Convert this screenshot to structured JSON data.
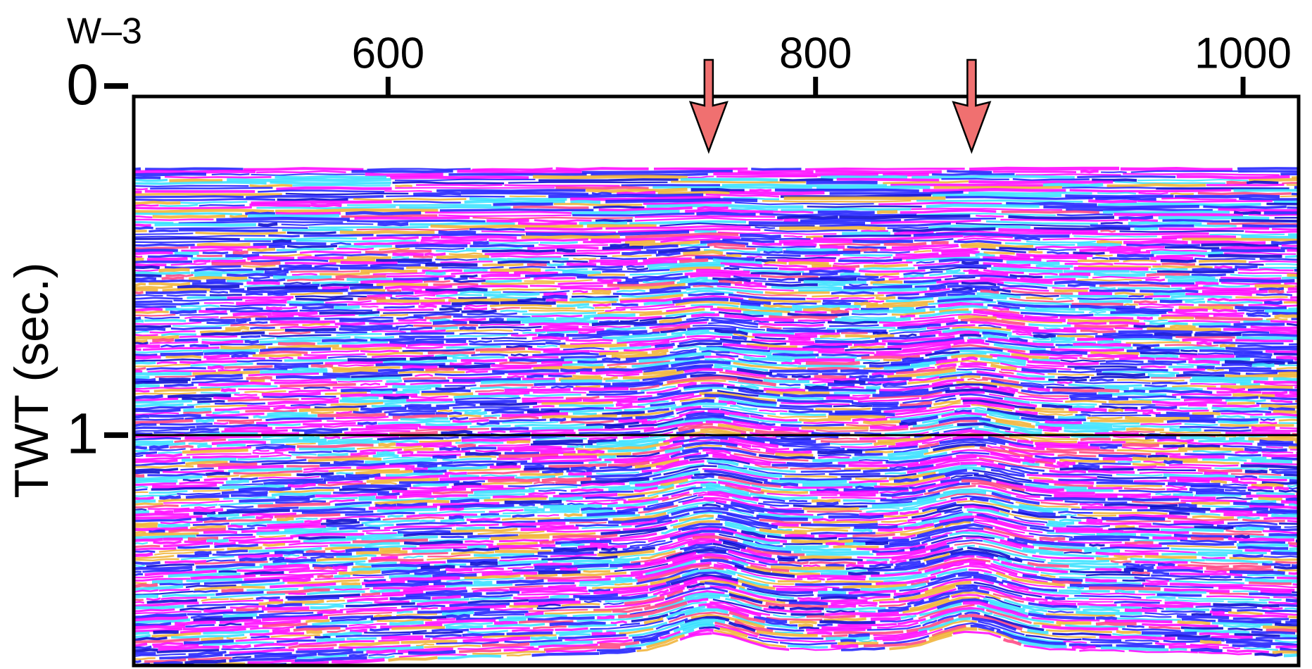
{
  "chart_data": {
    "type": "seismic-section",
    "title": "W–3",
    "ylabel": "TWT (sec.)",
    "xlim": [
      481,
      1026
    ],
    "xticks": [
      600,
      800,
      1000
    ],
    "ylim": [
      0.03,
      1.66
    ],
    "yticks": [
      0,
      1
    ],
    "markers_x": [
      750,
      873
    ],
    "marker_color": "#f07070",
    "colors": [
      "#ff00ff",
      "#1a1aff",
      "#0000cc",
      "#33e0ff",
      "#f0b030",
      "#ff4080"
    ]
  }
}
